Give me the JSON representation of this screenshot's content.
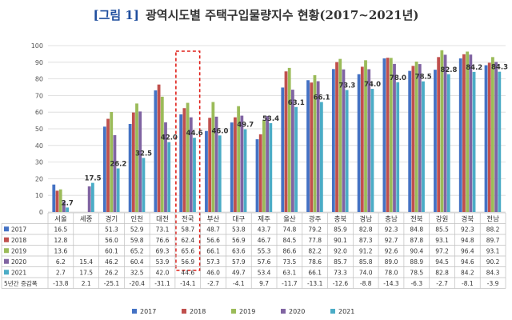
{
  "chart_data": {
    "type": "bar",
    "title": "[그림 1]  광역시도별 주택구입물량지수 현황(2017~2021년)",
    "title_bracket": "[그림 1]",
    "title_rest": "광역시도별 주택구입물량지수 현황(2017~2021년)",
    "categories": [
      "서울",
      "세종",
      "경기",
      "인천",
      "대전",
      "전국",
      "부산",
      "대구",
      "제주",
      "울산",
      "광주",
      "충북",
      "경남",
      "충남",
      "전북",
      "강원",
      "경북",
      "전남"
    ],
    "highlight_category": "전국",
    "ylim": [
      0,
      100
    ],
    "yticks": [
      0,
      10,
      20,
      30,
      40,
      50,
      60,
      70,
      80,
      90,
      100
    ],
    "grid": true,
    "legend_position": "bottom",
    "series": [
      {
        "name": "2017",
        "color": "#4472c4",
        "values": [
          16.5,
          null,
          51.3,
          52.9,
          73.1,
          58.7,
          48.7,
          53.8,
          43.7,
          74.8,
          79.2,
          85.9,
          82.8,
          92.3,
          84.8,
          85.5,
          92.3,
          88.2
        ]
      },
      {
        "name": "2018",
        "color": "#c0504d",
        "values": [
          12.8,
          null,
          56.0,
          59.8,
          76.6,
          62.4,
          56.6,
          56.9,
          46.7,
          84.5,
          77.8,
          90.1,
          87.3,
          92.7,
          87.8,
          93.1,
          94.8,
          89.7
        ]
      },
      {
        "name": "2019",
        "color": "#9bbb59",
        "values": [
          13.6,
          null,
          60.1,
          65.2,
          69.3,
          65.6,
          66.1,
          63.6,
          55.3,
          86.6,
          82.2,
          92.0,
          91.2,
          92.6,
          90.4,
          97.2,
          96.4,
          93.1
        ]
      },
      {
        "name": "2020",
        "color": "#8064a2",
        "values": [
          6.2,
          15.4,
          46.2,
          60.4,
          53.9,
          56.9,
          57.3,
          57.9,
          57.6,
          73.5,
          78.6,
          85.7,
          85.8,
          89.0,
          88.9,
          94.5,
          94.6,
          90.2
        ]
      },
      {
        "name": "2021",
        "color": "#4bacc6",
        "values": [
          2.7,
          17.5,
          26.2,
          32.5,
          42.0,
          44.6,
          46.0,
          49.7,
          53.4,
          63.1,
          66.1,
          73.3,
          74.0,
          78.0,
          78.5,
          82.8,
          84.2,
          84.3
        ]
      }
    ],
    "change_row": {
      "label": "5년간 증감폭",
      "values": [
        "-13.8",
        "2.1",
        "-25.1",
        "-20.4",
        "-31.1",
        "-14.1",
        "-2.7",
        "-4.1",
        "9.7",
        "-11.7",
        "-13.1",
        "-12.6",
        "-8.8",
        "-14.3",
        "-6.3",
        "-2.7",
        "-8.1",
        "-3.9"
      ]
    }
  }
}
